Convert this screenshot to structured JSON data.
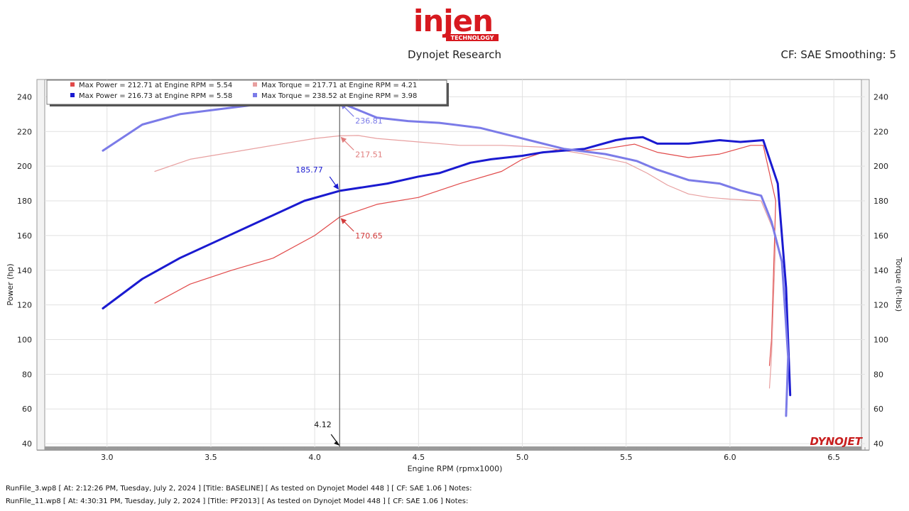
{
  "header": {
    "logo_text": "injen",
    "logo_subtext": "TECHNOLOGY",
    "subtitle": "Dynojet Research",
    "cf_smoothing": "CF: SAE Smoothing: 5"
  },
  "colors": {
    "baseline": "#e14a4a",
    "baseline_light": "#e8a0a0",
    "tuned_power": "#1a1ad0",
    "tuned_torque": "#7b7be8",
    "logo_red": "#d7191f"
  },
  "chart_data": {
    "type": "line",
    "xlabel": "Engine RPM (rpmx1000)",
    "ylabel": "Power (hp)",
    "y2label": "Torque (ft-lbs)",
    "xlim": [
      2.7,
      6.65
    ],
    "ylim": [
      38,
      250
    ],
    "xticks": [
      "3.0",
      "3.5",
      "4.0",
      "4.5",
      "5.0",
      "5.5",
      "6.0",
      "6.5"
    ],
    "yticks": [
      "40",
      "60",
      "80",
      "100",
      "120",
      "140",
      "160",
      "180",
      "200",
      "220",
      "240"
    ],
    "grid": true,
    "legend_position": "top-left",
    "legend": [
      "Max Power = 212.71 at Engine RPM = 5.54",
      "Max Torque = 217.71 at Engine RPM = 4.21",
      "Max Power = 216.73 at Engine RPM = 5.58",
      "Max Torque = 238.52 at Engine RPM = 3.98"
    ],
    "cursor_rpm": "4.12",
    "cursor_x": 4.12,
    "annotations": [
      {
        "text": "236.81",
        "x": 4.12,
        "y": 236.81,
        "series": 3
      },
      {
        "text": "217.51",
        "x": 4.12,
        "y": 217.51,
        "series": 1
      },
      {
        "text": "185.77",
        "x": 4.12,
        "y": 185.77,
        "series": 2
      },
      {
        "text": "170.65",
        "x": 4.12,
        "y": 170.65,
        "series": 0
      }
    ],
    "series": [
      {
        "role": "power-baseline",
        "points": [
          [
            3.23,
            121
          ],
          [
            3.4,
            132
          ],
          [
            3.6,
            140
          ],
          [
            3.8,
            147
          ],
          [
            4.0,
            160
          ],
          [
            4.12,
            170.65
          ],
          [
            4.3,
            178
          ],
          [
            4.5,
            182
          ],
          [
            4.7,
            190
          ],
          [
            4.9,
            197
          ],
          [
            5.0,
            204
          ],
          [
            5.1,
            208
          ],
          [
            5.2,
            210
          ],
          [
            5.3,
            209
          ],
          [
            5.4,
            210
          ],
          [
            5.54,
            212.71
          ],
          [
            5.65,
            208
          ],
          [
            5.8,
            205
          ],
          [
            5.95,
            207
          ],
          [
            6.1,
            212
          ],
          [
            6.16,
            212
          ],
          [
            6.22,
            180
          ],
          [
            6.2,
            100
          ],
          [
            6.19,
            85
          ]
        ]
      },
      {
        "role": "torque-baseline",
        "points": [
          [
            3.23,
            197
          ],
          [
            3.4,
            204
          ],
          [
            3.6,
            208
          ],
          [
            3.8,
            212
          ],
          [
            4.0,
            216
          ],
          [
            4.12,
            217.51
          ],
          [
            4.21,
            217.71
          ],
          [
            4.3,
            216
          ],
          [
            4.5,
            214
          ],
          [
            4.7,
            212
          ],
          [
            4.9,
            212
          ],
          [
            5.1,
            211
          ],
          [
            5.3,
            207
          ],
          [
            5.5,
            202
          ],
          [
            5.6,
            196
          ],
          [
            5.7,
            189
          ],
          [
            5.8,
            184
          ],
          [
            5.9,
            182
          ],
          [
            6.0,
            181
          ],
          [
            6.15,
            180
          ],
          [
            6.22,
            160
          ],
          [
            6.2,
            90
          ],
          [
            6.19,
            72
          ]
        ]
      },
      {
        "role": "power-tuned",
        "points": [
          [
            2.98,
            118
          ],
          [
            3.17,
            135
          ],
          [
            3.35,
            147
          ],
          [
            3.55,
            158
          ],
          [
            3.75,
            169
          ],
          [
            3.95,
            180
          ],
          [
            4.12,
            185.77
          ],
          [
            4.35,
            190
          ],
          [
            4.5,
            194
          ],
          [
            4.6,
            196
          ],
          [
            4.75,
            202
          ],
          [
            4.85,
            204
          ],
          [
            5.0,
            206
          ],
          [
            5.1,
            208
          ],
          [
            5.3,
            210
          ],
          [
            5.45,
            215
          ],
          [
            5.5,
            216
          ],
          [
            5.58,
            216.73
          ],
          [
            5.65,
            213
          ],
          [
            5.8,
            213
          ],
          [
            5.95,
            215
          ],
          [
            6.05,
            214
          ],
          [
            6.16,
            215
          ],
          [
            6.23,
            190
          ],
          [
            6.27,
            130
          ],
          [
            6.29,
            68
          ]
        ]
      },
      {
        "role": "torque-tuned",
        "points": [
          [
            2.98,
            209
          ],
          [
            3.17,
            224
          ],
          [
            3.35,
            230
          ],
          [
            3.55,
            233
          ],
          [
            3.75,
            236
          ],
          [
            3.98,
            238.52
          ],
          [
            4.12,
            236.81
          ],
          [
            4.3,
            228
          ],
          [
            4.45,
            226
          ],
          [
            4.6,
            225
          ],
          [
            4.8,
            222
          ],
          [
            5.0,
            216
          ],
          [
            5.2,
            210
          ],
          [
            5.4,
            207
          ],
          [
            5.55,
            203
          ],
          [
            5.65,
            198
          ],
          [
            5.8,
            192
          ],
          [
            5.95,
            190
          ],
          [
            6.05,
            186
          ],
          [
            6.15,
            183
          ],
          [
            6.2,
            168
          ],
          [
            6.25,
            145
          ],
          [
            6.28,
            90
          ],
          [
            6.27,
            56
          ]
        ]
      }
    ]
  },
  "footer": {
    "run1": "RunFile_3.wp8 [ At: 2:12:26 PM, Tuesday, July 2, 2024 ] [Title: BASELINE]  [ As tested on Dynojet Model 448 ] [ CF: SAE 1.06 ] Notes:",
    "run2": "RunFile_11.wp8 [ At: 4:30:31 PM, Tuesday, July 2, 2024 ] [Title: PF2013]  [ As tested on Dynojet Model 448 ] [ CF: SAE 1.06 ] Notes:"
  },
  "watermark": "DYNOJET"
}
